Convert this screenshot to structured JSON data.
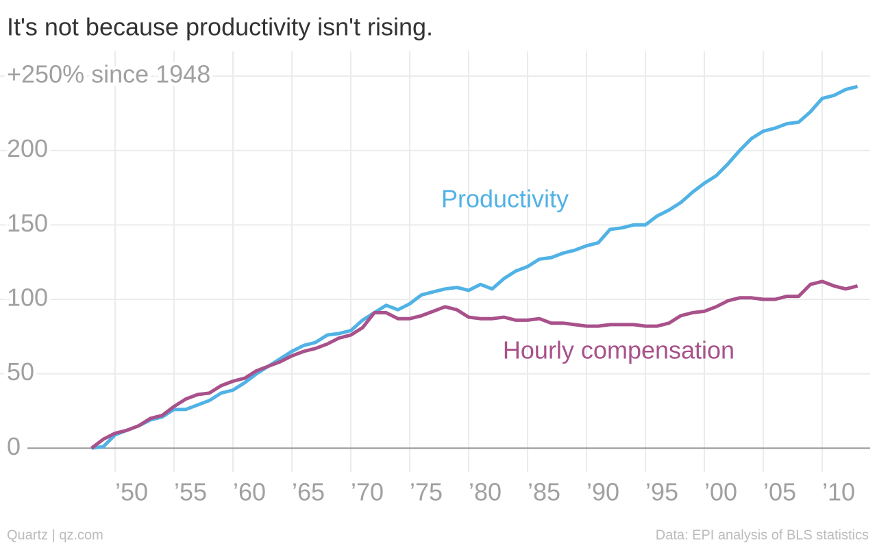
{
  "chart_data": {
    "type": "line",
    "title": "It's not because productivity isn't rising.",
    "source_left": "Quartz | qz.com",
    "source_right": "Data: EPI analysis of BLS statistics",
    "x": [
      1948,
      1949,
      1950,
      1951,
      1952,
      1953,
      1954,
      1955,
      1956,
      1957,
      1958,
      1959,
      1960,
      1961,
      1962,
      1963,
      1964,
      1965,
      1966,
      1967,
      1968,
      1969,
      1970,
      1971,
      1972,
      1973,
      1974,
      1975,
      1976,
      1977,
      1978,
      1979,
      1980,
      1981,
      1982,
      1983,
      1984,
      1985,
      1986,
      1987,
      1988,
      1989,
      1990,
      1991,
      1992,
      1993,
      1994,
      1995,
      1996,
      1997,
      1998,
      1999,
      2000,
      2001,
      2002,
      2003,
      2004,
      2005,
      2006,
      2007,
      2008,
      2009,
      2010,
      2011,
      2012,
      2013
    ],
    "series": [
      {
        "name": "Productivity",
        "color": "#51b2e5",
        "values": [
          0,
          1,
          9,
          12,
          15,
          19,
          21,
          26,
          26,
          29,
          32,
          37,
          39,
          44,
          50,
          55,
          60,
          65,
          69,
          71,
          76,
          77,
          79,
          86,
          91,
          96,
          93,
          97,
          103,
          105,
          107,
          108,
          106,
          110,
          107,
          114,
          119,
          122,
          127,
          128,
          131,
          133,
          136,
          138,
          147,
          148,
          150,
          150,
          156,
          160,
          165,
          172,
          178,
          183,
          191,
          200,
          208,
          213,
          215,
          218,
          219,
          226,
          235,
          237,
          241,
          243
        ]
      },
      {
        "name": "Hourly compensation",
        "color": "#a8518a",
        "values": [
          0,
          6,
          10,
          12,
          15,
          20,
          22,
          28,
          33,
          36,
          37,
          42,
          45,
          47,
          52,
          55,
          58,
          62,
          65,
          67,
          70,
          74,
          76,
          81,
          91,
          91,
          87,
          87,
          89,
          92,
          95,
          93,
          88,
          87,
          87,
          88,
          86,
          86,
          87,
          84,
          84,
          83,
          82,
          82,
          83,
          83,
          83,
          82,
          82,
          84,
          89,
          91,
          92,
          95,
          99,
          101,
          101,
          100,
          100,
          102,
          102,
          110,
          112,
          109,
          107,
          109
        ]
      }
    ],
    "xlim": [
      1941,
      2014
    ],
    "ylim": [
      -16,
      262
    ],
    "xticks": [
      {
        "value": 1950,
        "label": "’50"
      },
      {
        "value": 1955,
        "label": "’55"
      },
      {
        "value": 1960,
        "label": "’60"
      },
      {
        "value": 1965,
        "label": "’65"
      },
      {
        "value": 1970,
        "label": "’70"
      },
      {
        "value": 1975,
        "label": "’75"
      },
      {
        "value": 1980,
        "label": "’80"
      },
      {
        "value": 1985,
        "label": "’85"
      },
      {
        "value": 1990,
        "label": "’90"
      },
      {
        "value": 1995,
        "label": "’95"
      },
      {
        "value": 2000,
        "label": "’00"
      },
      {
        "value": 2005,
        "label": "’05"
      },
      {
        "value": 2010,
        "label": "’10"
      }
    ],
    "yticks": [
      0,
      50,
      100,
      150,
      200,
      {
        "value": 250,
        "label": "+250% since 1948"
      }
    ],
    "grid": true
  }
}
